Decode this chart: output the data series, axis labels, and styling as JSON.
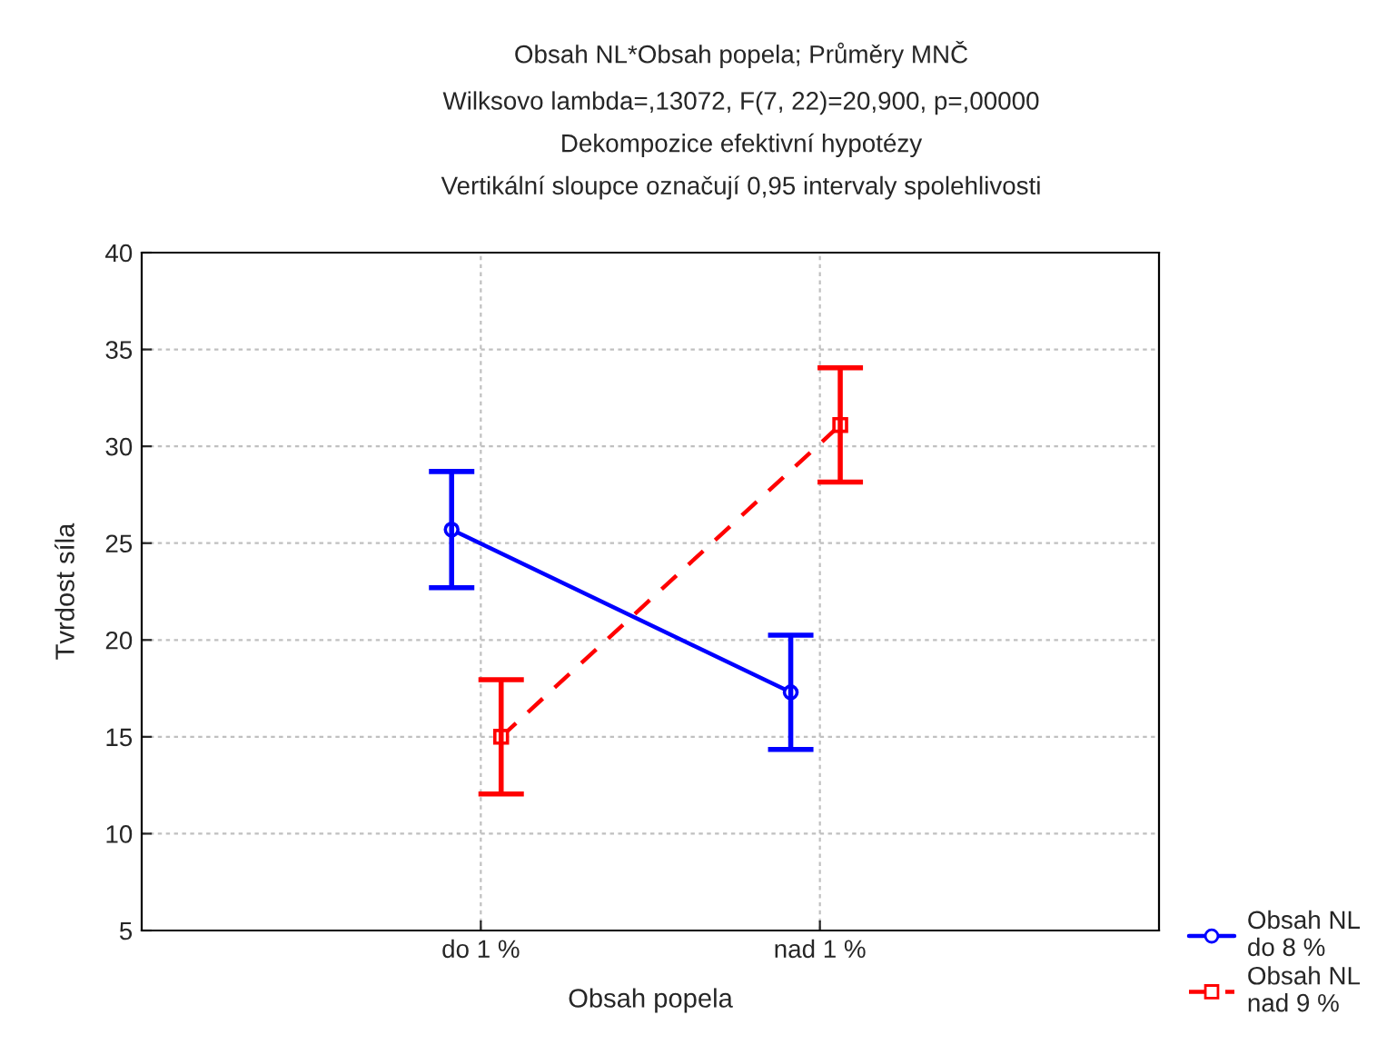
{
  "chart_data": {
    "type": "line",
    "title": "Obsah NL*Obsah popela; Průměry MNČ",
    "subtitle": "Wilksovo lambda=,13072, F(7, 22)=20,900, p=,00000\nDekompozice efektivní hypotézy\nVertikální sloupce označují 0,95 intervaly spolehlivosti",
    "xlabel": "Obsah popela",
    "ylabel": "Tvrdost síla",
    "categories": [
      "do 1 %",
      "nad 1 %"
    ],
    "series": [
      {
        "name": "Obsah NL\ndo 8 %",
        "color": "#0000ff",
        "values": [
          25.7,
          17.3
        ],
        "errors": [
          3.0,
          2.95
        ],
        "marker": "circle",
        "line_style": "solid"
      },
      {
        "name": "Obsah NL\nnad 9 %",
        "color": "#ff0000",
        "values": [
          15.0,
          31.1
        ],
        "errors": [
          2.95,
          2.95
        ],
        "marker": "square",
        "line_style": "dashed"
      }
    ],
    "ylim": [
      5,
      40
    ],
    "yticks": [
      5,
      10,
      15,
      20,
      25,
      30,
      35,
      40
    ],
    "grid": true,
    "legend": "bottom right"
  }
}
